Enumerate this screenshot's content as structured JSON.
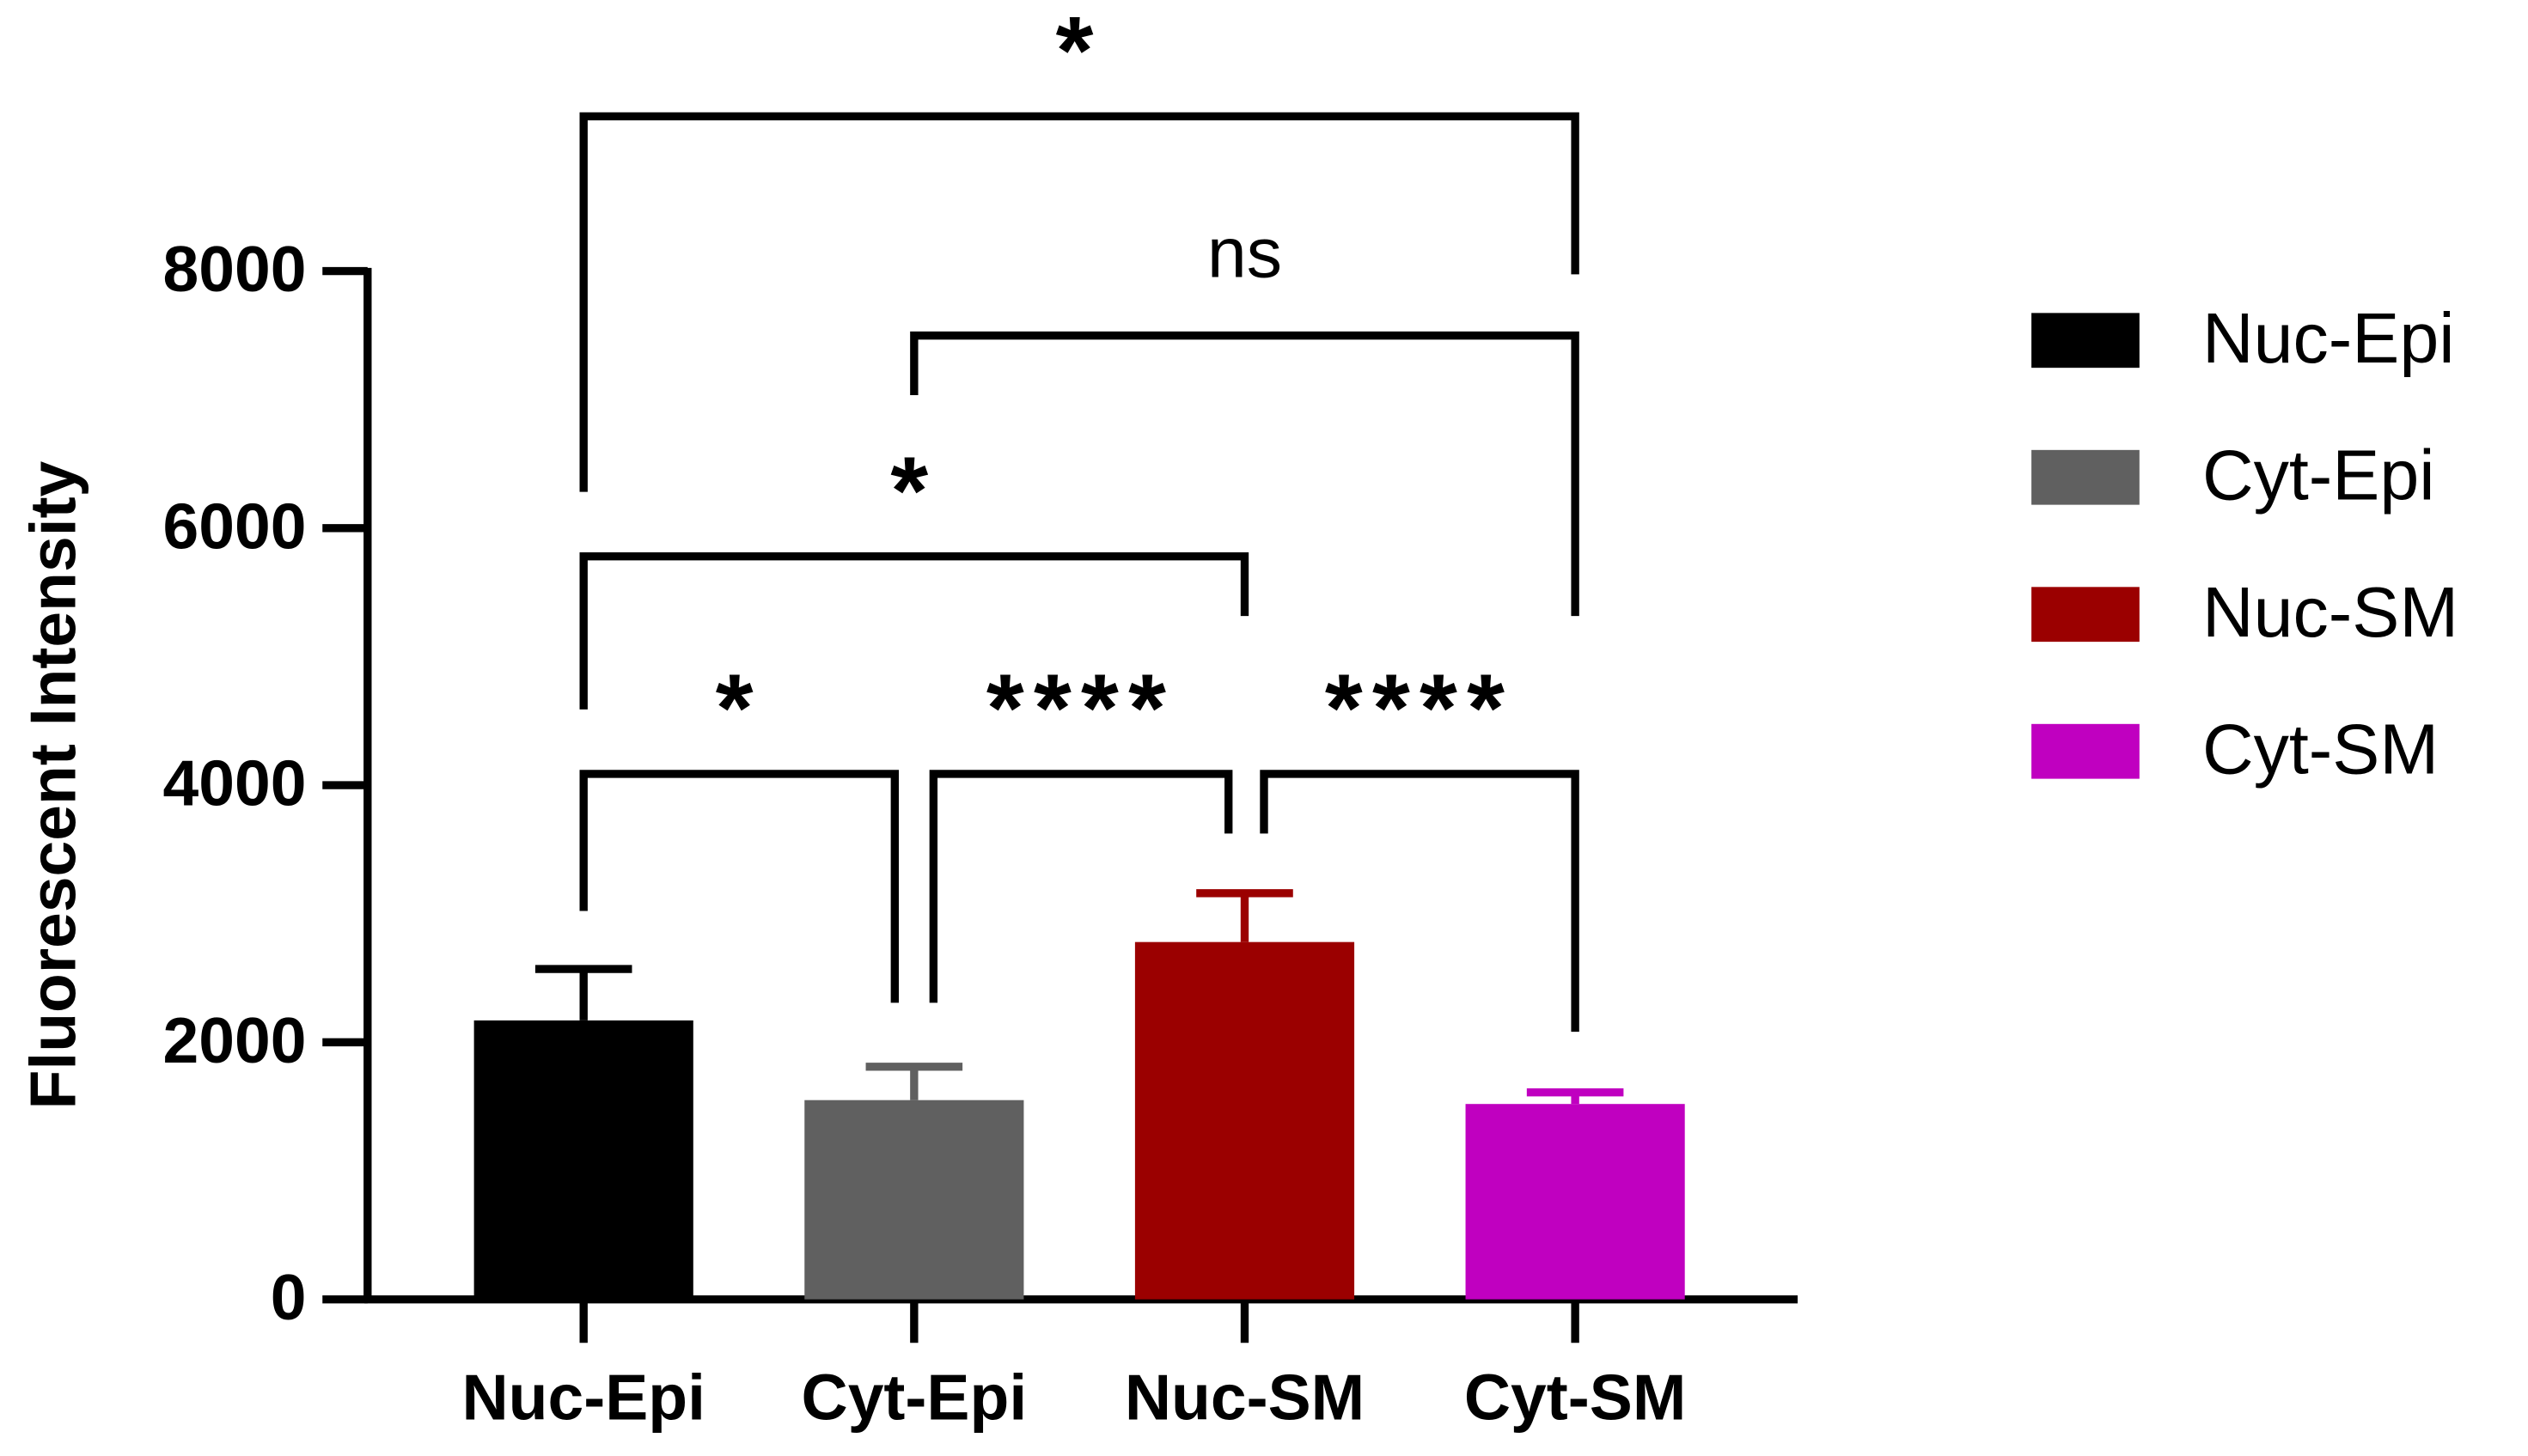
{
  "chart_data": {
    "type": "bar",
    "y_label": "Fluorescent Intensity",
    "categories": [
      "Nuc-Epi",
      "Cyt-Epi",
      "Nuc-SM",
      "Cyt-SM"
    ],
    "values": [
      2170,
      1550,
      2780,
      1520
    ],
    "errors": [
      400,
      260,
      380,
      90
    ],
    "colors": [
      "#000000",
      "#606060",
      "#9b0000",
      "#c000c0"
    ],
    "ylim": [
      0,
      8000
    ],
    "yticks": [
      0,
      2000,
      4000,
      6000,
      8000
    ],
    "legend": "right",
    "comparisons": [
      {
        "from": 0,
        "to": 1,
        "label": "*"
      },
      {
        "from": 1,
        "to": 2,
        "label": "****"
      },
      {
        "from": 2,
        "to": 3,
        "label": "****"
      },
      {
        "from": 0,
        "to": 2,
        "label": "*"
      },
      {
        "from": 1,
        "to": 3,
        "label": "ns"
      },
      {
        "from": 0,
        "to": 3,
        "label": "*"
      }
    ]
  }
}
